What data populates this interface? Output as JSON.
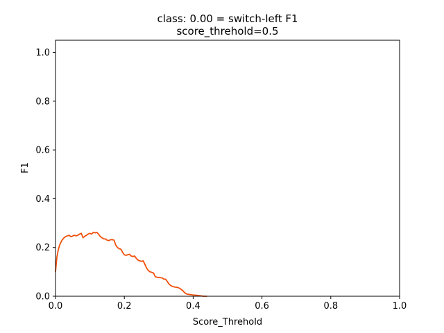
{
  "chart_data": {
    "type": "line",
    "title_line1": "class: 0.00 = switch-left F1",
    "title_line2": "score_threhold=0.5",
    "xlabel": "Score_Threhold",
    "ylabel": "F1",
    "xlim": [
      0.0,
      1.0
    ],
    "ylim": [
      0.0,
      1.05
    ],
    "x_ticks": [
      0.0,
      0.2,
      0.4,
      0.6,
      0.8,
      1.0
    ],
    "y_ticks": [
      0.0,
      0.2,
      0.4,
      0.6,
      0.8,
      1.0
    ],
    "x_tick_labels": [
      "0.0",
      "0.2",
      "0.4",
      "0.6",
      "0.8",
      "1.0"
    ],
    "y_tick_labels": [
      "0.0",
      "0.2",
      "0.4",
      "0.6",
      "0.8",
      "1.0"
    ],
    "grid": false,
    "color": "#f0500a",
    "series": [
      {
        "x": [
          0.0,
          0.004,
          0.008,
          0.012,
          0.016,
          0.02,
          0.025,
          0.03,
          0.035,
          0.04,
          0.045,
          0.05,
          0.055,
          0.06,
          0.065,
          0.07,
          0.075,
          0.08,
          0.085,
          0.09,
          0.095,
          0.1,
          0.105,
          0.11,
          0.115,
          0.12,
          0.125,
          0.13,
          0.135,
          0.14,
          0.145,
          0.15,
          0.155,
          0.16,
          0.165,
          0.17,
          0.175,
          0.18,
          0.185,
          0.19,
          0.195,
          0.2,
          0.205,
          0.21,
          0.215,
          0.22,
          0.225,
          0.23,
          0.235,
          0.24,
          0.245,
          0.25,
          0.255,
          0.26,
          0.265,
          0.27,
          0.275,
          0.28,
          0.285,
          0.29,
          0.295,
          0.3,
          0.305,
          0.31,
          0.315,
          0.32,
          0.325,
          0.33,
          0.335,
          0.34,
          0.345,
          0.35,
          0.355,
          0.36,
          0.365,
          0.37,
          0.375,
          0.38,
          0.385,
          0.39,
          0.395,
          0.4,
          0.41,
          0.42,
          0.43,
          0.44
        ],
        "y": [
          0.1,
          0.16,
          0.19,
          0.21,
          0.222,
          0.232,
          0.24,
          0.245,
          0.248,
          0.25,
          0.244,
          0.247,
          0.25,
          0.248,
          0.25,
          0.255,
          0.258,
          0.24,
          0.246,
          0.25,
          0.255,
          0.258,
          0.255,
          0.262,
          0.26,
          0.262,
          0.255,
          0.245,
          0.24,
          0.235,
          0.235,
          0.23,
          0.228,
          0.232,
          0.232,
          0.23,
          0.21,
          0.2,
          0.195,
          0.193,
          0.18,
          0.17,
          0.168,
          0.17,
          0.172,
          0.165,
          0.163,
          0.165,
          0.155,
          0.148,
          0.145,
          0.143,
          0.145,
          0.13,
          0.115,
          0.105,
          0.1,
          0.098,
          0.095,
          0.08,
          0.078,
          0.077,
          0.076,
          0.075,
          0.07,
          0.07,
          0.06,
          0.05,
          0.044,
          0.04,
          0.038,
          0.037,
          0.036,
          0.033,
          0.028,
          0.023,
          0.015,
          0.01,
          0.008,
          0.007,
          0.006,
          0.005,
          0.004,
          0.002,
          0.0,
          0.0
        ]
      }
    ]
  }
}
